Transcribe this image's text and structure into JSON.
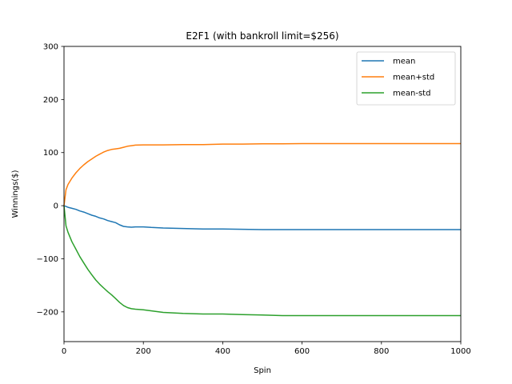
{
  "chart_data": {
    "type": "line",
    "title": "E2F1 (with bankroll limit=$256)",
    "xlabel": "Spin",
    "ylabel": "Winnings($)",
    "xlim": [
      0,
      1000
    ],
    "ylim": [
      -256,
      300
    ],
    "xticks": [
      0,
      200,
      400,
      600,
      800,
      1000
    ],
    "yticks": [
      -200,
      -100,
      0,
      100,
      200,
      300
    ],
    "xtick_labels": [
      "0",
      "200",
      "400",
      "600",
      "800",
      "1000"
    ],
    "ytick_labels": [
      "−200",
      "−100",
      "0",
      "100",
      "200",
      "300"
    ],
    "grid": false,
    "legend_position": "top-right",
    "series": [
      {
        "name": "mean",
        "color": "#1f77b4",
        "x": [
          0,
          10,
          20,
          30,
          40,
          50,
          60,
          70,
          80,
          90,
          100,
          110,
          120,
          130,
          140,
          150,
          160,
          170,
          180,
          200,
          220,
          250,
          300,
          350,
          400,
          450,
          500,
          550,
          600,
          700,
          800,
          900,
          1000
        ],
        "y": [
          0,
          -3,
          -5,
          -7,
          -10,
          -12,
          -15,
          -18,
          -20,
          -23,
          -25,
          -28,
          -30,
          -32,
          -36,
          -39,
          -40,
          -40.5,
          -40,
          -40,
          -41,
          -42,
          -43,
          -44,
          -44,
          -44.5,
          -45,
          -45,
          -45,
          -45,
          -45,
          -45,
          -45
        ]
      },
      {
        "name": "mean+std",
        "color": "#ff7f0e",
        "x": [
          0,
          5,
          10,
          20,
          30,
          40,
          50,
          60,
          70,
          80,
          90,
          100,
          110,
          120,
          130,
          140,
          150,
          160,
          170,
          180,
          200,
          250,
          300,
          350,
          400,
          450,
          500,
          550,
          600,
          700,
          800,
          900,
          1000
        ],
        "y": [
          0,
          30,
          40,
          52,
          62,
          70,
          77,
          83,
          88,
          93,
          97,
          101,
          104,
          106,
          107,
          108,
          110,
          112,
          113,
          114,
          114.5,
          114.5,
          115,
          115,
          116,
          116,
          116.5,
          116.5,
          117,
          117,
          117,
          117,
          117
        ]
      },
      {
        "name": "mean-std",
        "color": "#2ca02c",
        "x": [
          0,
          5,
          10,
          20,
          30,
          40,
          50,
          60,
          70,
          80,
          90,
          100,
          110,
          120,
          130,
          140,
          150,
          160,
          170,
          180,
          200,
          250,
          300,
          350,
          400,
          450,
          500,
          550,
          600,
          700,
          800,
          900,
          1000
        ],
        "y": [
          0,
          -38,
          -50,
          -68,
          -82,
          -96,
          -108,
          -120,
          -130,
          -140,
          -148,
          -155,
          -162,
          -168,
          -175,
          -182,
          -188,
          -192,
          -194,
          -195,
          -196,
          -201,
          -203,
          -204,
          -204,
          -205,
          -206,
          -207,
          -207,
          -207,
          -207,
          -207,
          -207
        ]
      }
    ]
  }
}
